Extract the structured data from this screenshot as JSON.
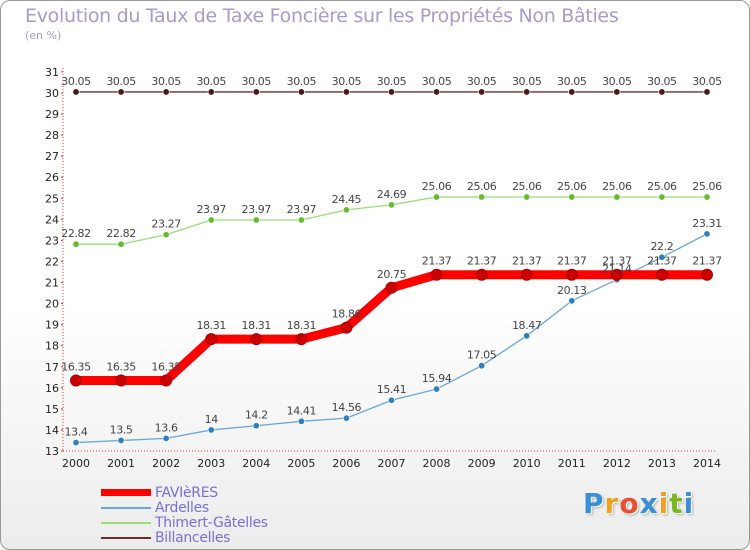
{
  "title": "Evolution du Taux de Taxe Foncière sur les Propriétés Non Bâties",
  "unit": "(en %)",
  "logo": {
    "text": "Proxiti",
    "letters": [
      "P",
      "r",
      "o",
      "x",
      "i",
      "t",
      "i"
    ],
    "colors": [
      "#3a8fd6",
      "#f0a020",
      "#e85030",
      "#3a8fd6",
      "#f0a020",
      "#78b820",
      "#3a8fd6"
    ]
  },
  "chart_data": {
    "type": "line",
    "title": "Evolution du Taux de Taxe Foncière sur les Propriétés Non Bâties",
    "ylabel": "(en %)",
    "xlabel": "",
    "x": [
      "2000",
      "2001",
      "2002",
      "2003",
      "2004",
      "2005",
      "2006",
      "2007",
      "2008",
      "2009",
      "2010",
      "2011",
      "2012",
      "2013",
      "2014"
    ],
    "ylim": [
      13,
      31
    ],
    "yticks": [
      13,
      14,
      15,
      16,
      17,
      18,
      19,
      20,
      21,
      22,
      23,
      24,
      25,
      26,
      27,
      28,
      29,
      30,
      31
    ],
    "grid": false,
    "legend_position": "bottom-left",
    "series": [
      {
        "name": "FAVIèRES",
        "color": "#ff0000",
        "point_color": "#cc0000",
        "thick": true,
        "values": [
          16.35,
          16.35,
          16.35,
          18.31,
          18.31,
          18.31,
          18.86,
          20.75,
          21.37,
          21.37,
          21.37,
          21.37,
          21.37,
          21.37,
          21.37
        ]
      },
      {
        "name": "Ardelles",
        "color": "#6aa6d8",
        "point_color": "#2e7fbf",
        "thick": false,
        "values": [
          13.4,
          13.5,
          13.6,
          14,
          14.2,
          14.41,
          14.56,
          15.41,
          15.94,
          17.05,
          18.47,
          20.13,
          21.14,
          22.2,
          23.31
        ]
      },
      {
        "name": "Thimert-Gâtelles",
        "color": "#99dd77",
        "point_color": "#66bb33",
        "thick": false,
        "values": [
          22.82,
          22.82,
          23.27,
          23.97,
          23.97,
          23.97,
          24.45,
          24.69,
          25.06,
          25.06,
          25.06,
          25.06,
          25.06,
          25.06,
          25.06
        ]
      },
      {
        "name": "Billancelles",
        "color": "#6b2e2e",
        "point_color": "#4a1a1a",
        "thick": false,
        "values": [
          30.05,
          30.05,
          30.05,
          30.05,
          30.05,
          30.05,
          30.05,
          30.05,
          30.05,
          30.05,
          30.05,
          30.05,
          30.05,
          30.05,
          30.05
        ]
      }
    ]
  }
}
